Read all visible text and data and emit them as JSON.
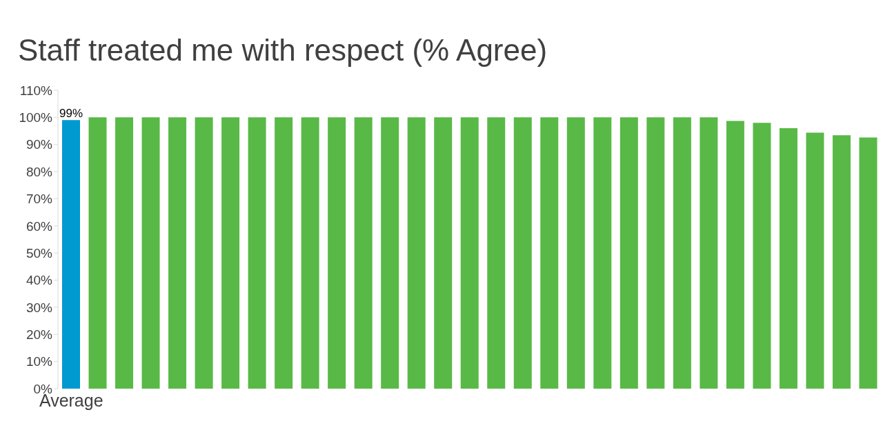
{
  "chart_data": {
    "type": "bar",
    "title": "Staff treated me with respect (% Agree)",
    "categories": [
      "Average",
      null,
      null,
      null,
      null,
      null,
      null,
      null,
      null,
      null,
      null,
      null,
      null,
      null,
      null,
      null,
      null,
      null,
      null,
      null,
      null,
      null,
      null,
      null,
      null,
      null,
      null,
      null,
      null,
      null,
      null
    ],
    "values": [
      99,
      100,
      100,
      100,
      100,
      100,
      100,
      100,
      100,
      100,
      100,
      100,
      100,
      100,
      100,
      100,
      100,
      100,
      100,
      100,
      100,
      100,
      100,
      100,
      100,
      98.7,
      98,
      96,
      94.4,
      93.4,
      92.6
    ],
    "colors": [
      "#0099d0",
      "#59b947",
      "#59b947",
      "#59b947",
      "#59b947",
      "#59b947",
      "#59b947",
      "#59b947",
      "#59b947",
      "#59b947",
      "#59b947",
      "#59b947",
      "#59b947",
      "#59b947",
      "#59b947",
      "#59b947",
      "#59b947",
      "#59b947",
      "#59b947",
      "#59b947",
      "#59b947",
      "#59b947",
      "#59b947",
      "#59b947",
      "#59b947",
      "#59b947",
      "#59b947",
      "#59b947",
      "#59b947",
      "#59b947",
      "#59b947"
    ],
    "value_labels": [
      "99%",
      null,
      null,
      null,
      null,
      null,
      null,
      null,
      null,
      null,
      null,
      null,
      null,
      null,
      null,
      null,
      null,
      null,
      null,
      null,
      null,
      null,
      null,
      null,
      null,
      null,
      null,
      null,
      null,
      null,
      null
    ],
    "ylim": [
      0,
      110
    ],
    "yticks": [
      {
        "value": 0,
        "label": "0%"
      },
      {
        "value": 10,
        "label": "10%"
      },
      {
        "value": 20,
        "label": "20%"
      },
      {
        "value": 30,
        "label": "30%"
      },
      {
        "value": 40,
        "label": "40%"
      },
      {
        "value": 50,
        "label": "50%"
      },
      {
        "value": 60,
        "label": "60%"
      },
      {
        "value": 70,
        "label": "70%"
      },
      {
        "value": 80,
        "label": "80%"
      },
      {
        "value": 90,
        "label": "90%"
      },
      {
        "value": 100,
        "label": "100%"
      },
      {
        "value": 110,
        "label": "110%"
      }
    ],
    "grid": false,
    "legend": false
  }
}
